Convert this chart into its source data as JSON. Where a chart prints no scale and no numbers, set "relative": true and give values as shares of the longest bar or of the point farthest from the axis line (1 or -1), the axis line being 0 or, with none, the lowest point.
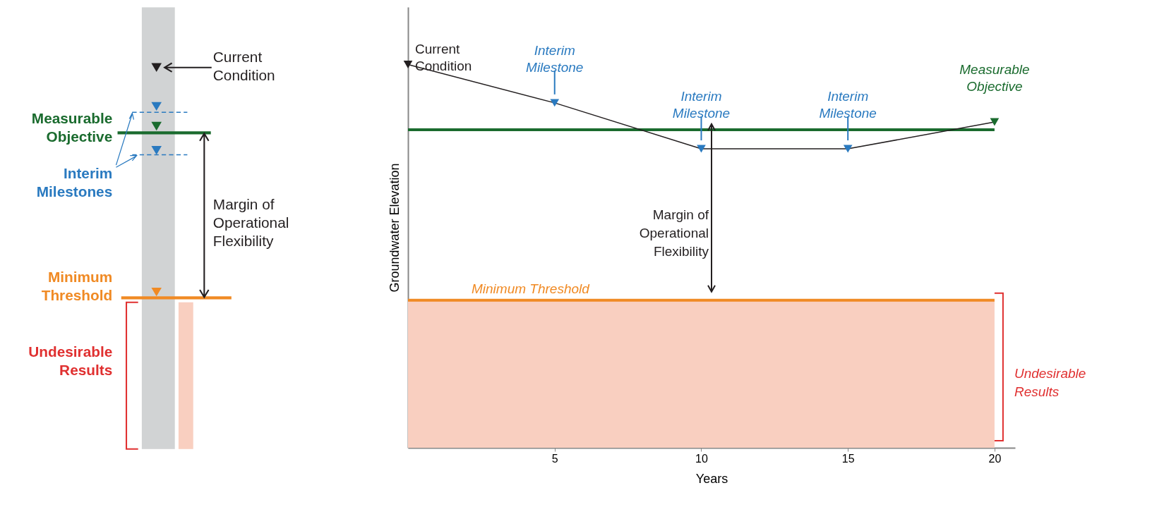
{
  "chart_data": [
    {
      "type": "other",
      "annotations": [
        "Current\nCondition",
        "Measurable\nObjective",
        "Interim\nMilestones",
        "Margin of\nOperational\nFlexibility",
        "Minimum\nThreshold",
        "Undesirable\nResults"
      ]
    },
    {
      "type": "line",
      "relative": true,
      "xlabel": "Years",
      "ylabel": "Groundwater Elevation",
      "xlim": [
        0,
        20.7
      ],
      "xticks": [
        5,
        10,
        15,
        20
      ],
      "marker": "triangle",
      "line_style": "solid",
      "grid": false,
      "legend": false,
      "series": [
        {
          "color": "#231f20",
          "colors": [
            "#231f20",
            "#2a7ac0",
            "#2a7ac0",
            "#2a7ac0",
            "#1a6b2e"
          ],
          "x": [
            0,
            5,
            10,
            15,
            20
          ],
          "values": [
            1,
            0.9,
            0.78,
            0.78,
            0.85
          ]
        }
      ],
      "ref_lines": [
        {
          "axis": "y",
          "value": 0.83,
          "color": "#1a6b2e"
        },
        {
          "axis": "y",
          "value": 0.385,
          "label": "Minimum Threshold",
          "color": "#f08a24"
        }
      ],
      "bands": [
        {
          "axis": "y",
          "from": 0,
          "to": 0.385,
          "label": "Undesirable\nResults",
          "color": "#f9cfc0"
        }
      ],
      "annotations": [
        {
          "text": "Current\nCondition",
          "x": 0,
          "y": 1
        },
        {
          "text": "Interim\nMilestone",
          "x": 5,
          "y": 0.9
        },
        {
          "text": "Interim\nMilestone",
          "x": 10,
          "y": 0.78
        },
        {
          "text": "Interim\nMilestone",
          "x": 15,
          "y": 0.78
        },
        {
          "text": "Measurable\nObjective",
          "x": 20,
          "y": 0.85
        },
        "Margin of\nOperational\nFlexibility"
      ]
    }
  ]
}
